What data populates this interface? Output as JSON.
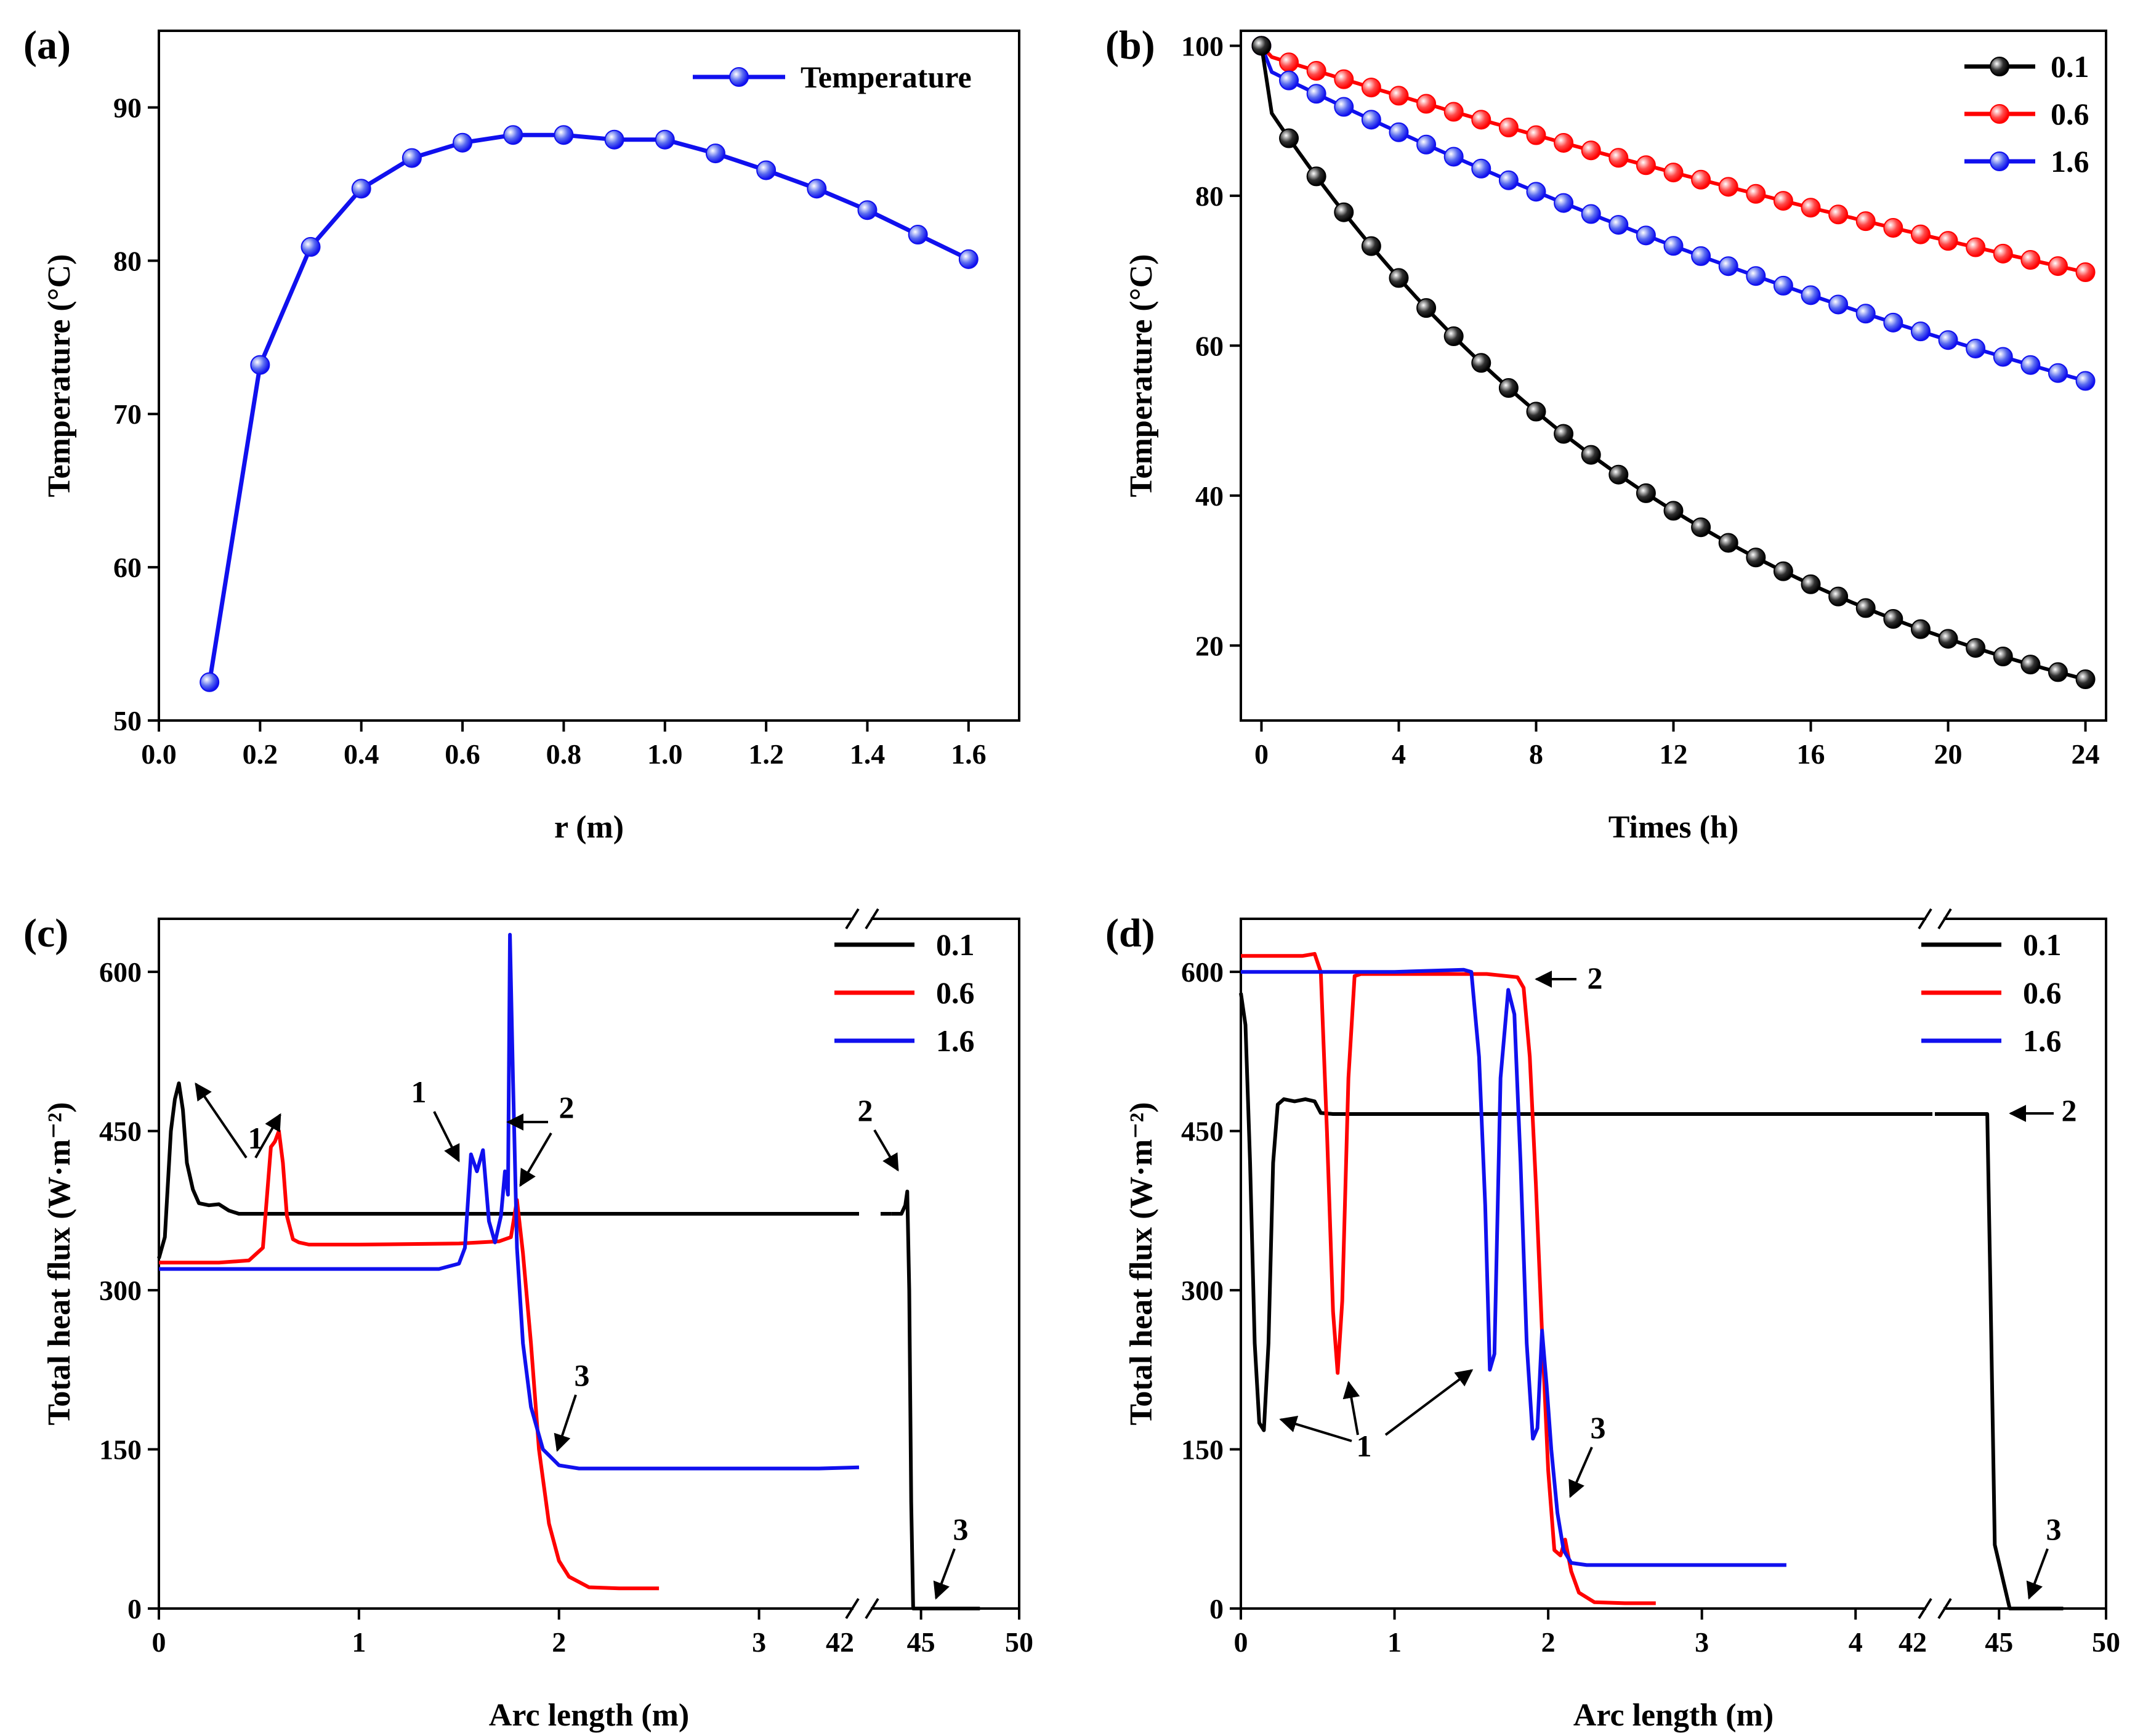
{
  "colors": {
    "black": "#000000",
    "red": "#ff0000",
    "blue": "#1010ee",
    "marker_blue": "#5a6cf0",
    "marker_red": "#ff4a4a",
    "marker_black": "#303030"
  },
  "chart_data": [
    {
      "panel": "(a)",
      "type": "line",
      "xlabel": "r (m)",
      "ylabel": "Temperature (°C)",
      "xlim": [
        0.0,
        1.7
      ],
      "ylim": [
        50,
        95
      ],
      "xticks": [
        0.0,
        0.2,
        0.4,
        0.6,
        0.8,
        1.0,
        1.2,
        1.4,
        1.6
      ],
      "xtick_labels": [
        "0.0",
        "0.2",
        "0.4",
        "0.6",
        "0.8",
        "1.0",
        "1.2",
        "1.4",
        "1.6"
      ],
      "yticks": [
        50,
        60,
        70,
        80,
        90
      ],
      "ytick_labels": [
        "50",
        "60",
        "70",
        "80",
        "90"
      ],
      "legend_position": "top-right",
      "series": [
        {
          "name": "Temperature",
          "color": "blue",
          "x": [
            0.1,
            0.2,
            0.3,
            0.4,
            0.5,
            0.6,
            0.7,
            0.8,
            0.9,
            1.0,
            1.1,
            1.2,
            1.3,
            1.4,
            1.5,
            1.6
          ],
          "y": [
            52.5,
            73.2,
            80.9,
            84.7,
            86.7,
            87.7,
            88.2,
            88.2,
            87.9,
            87.9,
            87.0,
            85.9,
            84.7,
            83.3,
            81.7,
            80.1
          ]
        }
      ]
    },
    {
      "panel": "(b)",
      "type": "line",
      "xlabel": "Times (h)",
      "ylabel": "Temperature (°C)",
      "xlim": [
        -0.6,
        24.6
      ],
      "ylim": [
        10,
        102
      ],
      "xticks": [
        0,
        4,
        8,
        12,
        16,
        20,
        24
      ],
      "xtick_labels": [
        "0",
        "4",
        "8",
        "12",
        "16",
        "20",
        "24"
      ],
      "yticks": [
        20,
        40,
        60,
        80,
        100
      ],
      "ytick_labels": [
        "20",
        "40",
        "60",
        "80",
        "100"
      ],
      "legend_position": "top-right",
      "series": [
        {
          "name": "0.1",
          "color": "black",
          "drop_to": 91,
          "start": 100,
          "final": 15.5
        },
        {
          "name": "0.6",
          "color": "red",
          "drop_to": 98.5,
          "start": 100,
          "final": 69.8
        },
        {
          "name": "1.6",
          "color": "blue",
          "drop_to": 96.5,
          "start": 100,
          "final": 55.3
        }
      ]
    },
    {
      "panel": "(c)",
      "type": "line",
      "xlabel": "Arc length (m)",
      "ylabel": "Total heat flux (W·m⁻²)",
      "ylim": [
        0,
        650
      ],
      "xticks": [
        0,
        1,
        2,
        3,
        42,
        45,
        50
      ],
      "xtick_labels": [
        "0",
        "1",
        "2",
        "3",
        "42",
        "45",
        "50"
      ],
      "yticks": [
        0,
        150,
        300,
        450,
        600
      ],
      "ytick_labels": [
        "0",
        "150",
        "300",
        "450",
        "600"
      ],
      "axis_break": [
        3.5,
        42
      ],
      "legend_position": "top-right",
      "series": [
        {
          "name": "0.1",
          "color": "black",
          "x": [
            0,
            0.03,
            0.06,
            0.08,
            0.1,
            0.12,
            0.14,
            0.17,
            0.2,
            0.25,
            0.3,
            0.35,
            0.4,
            0.6,
            1.0,
            2.0,
            3.0,
            3.5,
            43.5,
            44.0,
            44.2,
            44.3,
            44.4,
            44.5,
            44.6,
            45.5,
            48.0
          ],
          "y": [
            330,
            350,
            450,
            480,
            495,
            470,
            420,
            395,
            382,
            380,
            381,
            375,
            372,
            372,
            372,
            372,
            372,
            372,
            372,
            372,
            380,
            393,
            300,
            100,
            0,
            0,
            0
          ]
        },
        {
          "name": "0.6",
          "color": "red",
          "x": [
            0,
            0.3,
            0.45,
            0.52,
            0.56,
            0.58,
            0.6,
            0.62,
            0.64,
            0.67,
            0.7,
            0.75,
            1.0,
            1.5,
            1.7,
            1.76,
            1.79,
            1.82,
            1.86,
            1.9,
            1.95,
            2.0,
            2.05,
            2.15,
            2.3,
            2.5
          ],
          "y": [
            326,
            326,
            328,
            340,
            435,
            440,
            450,
            420,
            370,
            348,
            345,
            343,
            343,
            344,
            346,
            350,
            385,
            335,
            250,
            150,
            80,
            45,
            30,
            20,
            19,
            19
          ]
        },
        {
          "name": "1.6",
          "color": "blue",
          "x": [
            0,
            1.0,
            1.4,
            1.5,
            1.53,
            1.56,
            1.59,
            1.62,
            1.65,
            1.68,
            1.71,
            1.73,
            1.745,
            1.755,
            1.77,
            1.79,
            1.82,
            1.86,
            1.92,
            2.0,
            2.1,
            2.5,
            3.3,
            3.5
          ],
          "y": [
            320,
            320,
            320,
            325,
            340,
            428,
            412,
            432,
            365,
            345,
            370,
            412,
            390,
            635,
            500,
            340,
            250,
            190,
            150,
            135,
            132,
            132,
            132,
            133
          ]
        }
      ],
      "annotations": [
        "1",
        "1",
        "2",
        "2",
        "3",
        "3"
      ]
    },
    {
      "panel": "(d)",
      "type": "line",
      "xlabel": "Arc length (m)",
      "ylabel": "Total heat flux (W·m⁻²)",
      "ylim": [
        0,
        650
      ],
      "xticks": [
        0,
        1,
        2,
        3,
        4,
        42,
        45,
        50
      ],
      "xtick_labels": [
        "0",
        "1",
        "2",
        "3",
        "4",
        "42",
        "45",
        "50"
      ],
      "yticks": [
        0,
        150,
        300,
        450,
        600
      ],
      "ytick_labels": [
        "0",
        "150",
        "300",
        "450",
        "600"
      ],
      "axis_break": [
        4.5,
        42
      ],
      "legend_position": "top-right",
      "series": [
        {
          "name": "0.1",
          "color": "black",
          "x": [
            0,
            0.03,
            0.06,
            0.09,
            0.12,
            0.15,
            0.18,
            0.21,
            0.24,
            0.28,
            0.35,
            0.42,
            0.48,
            0.52,
            0.6,
            1.0,
            2.0,
            3.0,
            4.0,
            4.5,
            42.0,
            44.0,
            44.3,
            44.45,
            44.6,
            44.8,
            45.5,
            48.0
          ],
          "y": [
            580,
            550,
            420,
            250,
            175,
            168,
            250,
            420,
            475,
            480,
            478,
            480,
            478,
            467,
            466,
            466,
            466,
            466,
            466,
            466,
            466,
            466,
            466,
            466,
            300,
            60,
            0,
            0
          ]
        },
        {
          "name": "0.6",
          "color": "red",
          "x": [
            0,
            0.4,
            0.48,
            0.52,
            0.56,
            0.6,
            0.63,
            0.66,
            0.7,
            0.74,
            0.78,
            0.85,
            1.2,
            1.6,
            1.8,
            1.84,
            1.88,
            1.92,
            1.96,
            2.0,
            2.04,
            2.08,
            2.11,
            2.15,
            2.2,
            2.3,
            2.5,
            2.7
          ],
          "y": [
            615,
            615,
            617,
            600,
            450,
            280,
            222,
            290,
            500,
            596,
            598,
            598,
            598,
            598,
            595,
            585,
            520,
            400,
            260,
            130,
            55,
            50,
            65,
            35,
            15,
            6,
            5,
            5
          ]
        },
        {
          "name": "1.6",
          "color": "blue",
          "x": [
            0,
            1.0,
            1.45,
            1.5,
            1.55,
            1.59,
            1.62,
            1.65,
            1.69,
            1.74,
            1.78,
            1.82,
            1.86,
            1.9,
            1.93,
            1.96,
            1.99,
            2.02,
            2.06,
            2.1,
            2.15,
            2.25,
            2.4,
            3.0,
            3.55
          ],
          "y": [
            600,
            600,
            602,
            600,
            520,
            380,
            225,
            240,
            500,
            583,
            560,
            420,
            250,
            160,
            170,
            262,
            210,
            150,
            90,
            55,
            43,
            41,
            41,
            41,
            41
          ]
        }
      ],
      "annotations": [
        "1",
        "2",
        "2",
        "3",
        "3"
      ]
    }
  ]
}
